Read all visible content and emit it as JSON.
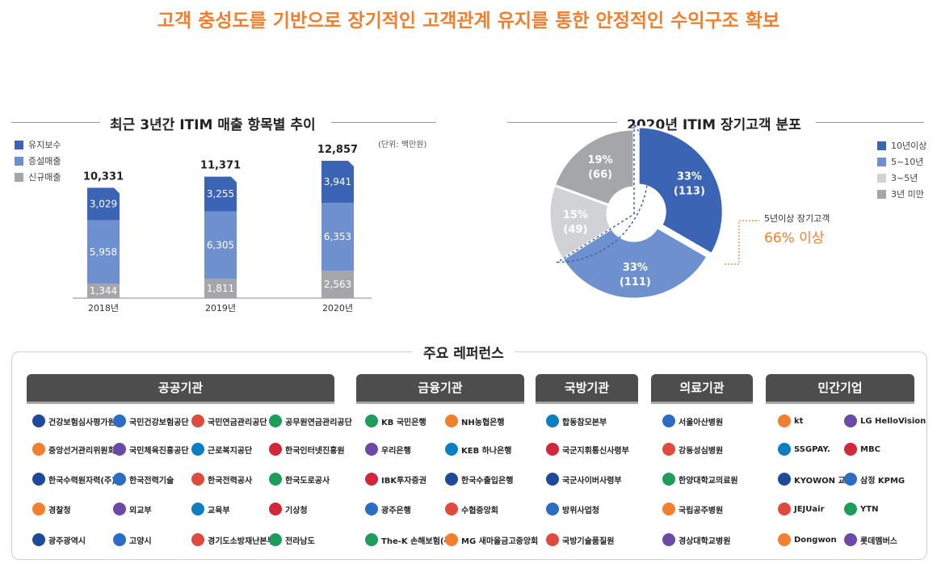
{
  "headline": "고객 충성도를 기반으로 장기적인 고객관계 유지를 통한 안정적인 수익구조 확보",
  "bar_section": {
    "title": "최근 3년간 ITIM 매출 항목별 추이",
    "unit": "(단위: 백만원)"
  },
  "pie_section": {
    "title": "2020년 ITIM 장기고객 분포",
    "note_line1": "5년이상 장기고객",
    "note_line2": "66% 이상"
  },
  "colors": {
    "dark_blue": "#3b64b4",
    "mid_blue": "#6e90cf",
    "light_gray": "#d0d2d6",
    "gray": "#a5a6aa",
    "orange": "#f07f2e"
  },
  "chart_data": [
    {
      "type": "bar",
      "stacked": true,
      "title": "최근 3년간 ITIM 매출 항목별 추이",
      "categories": [
        "2018년",
        "2019년",
        "2020년"
      ],
      "totals": [
        "10,331",
        "11,371",
        "12,857"
      ],
      "series": [
        {
          "name": "유지보수",
          "values": [
            3029,
            3255,
            3941
          ],
          "labels": [
            "3,029",
            "3,255",
            "3,941"
          ],
          "color": "#3b64b4"
        },
        {
          "name": "증설매출",
          "values": [
            5958,
            6305,
            6353
          ],
          "labels": [
            "5,958",
            "6,305",
            "6,353"
          ],
          "color": "#6e90cf"
        },
        {
          "name": "신규매출",
          "values": [
            1344,
            1811,
            2563
          ],
          "labels": [
            "1,344",
            "1,811",
            "2,563"
          ],
          "color": "#a5a6aa"
        }
      ],
      "legend_position": "top-left"
    },
    {
      "type": "pie",
      "donut": true,
      "title": "2020년 ITIM 장기고객 분포",
      "slices": [
        {
          "name": "10년이상",
          "value": 113,
          "pct": "33%",
          "count": "(113)",
          "color": "#3b64b4"
        },
        {
          "name": "5~10년",
          "value": 111,
          "pct": "33%",
          "count": "(111)",
          "color": "#6e90cf"
        },
        {
          "name": "3~5년",
          "value": 49,
          "pct": "15%",
          "count": "(49)",
          "color": "#d0d2d6"
        },
        {
          "name": "3년 미만",
          "value": 66,
          "pct": "19%",
          "count": "(66)",
          "color": "#a5a6aa"
        }
      ],
      "legend_position": "top-right"
    }
  ],
  "references": {
    "title": "주요 레퍼런스",
    "categories": [
      {
        "label": "공공기관",
        "orgs": [
          "건강보험심사평가원",
          "국민건강보험공단",
          "국민연금관리공단",
          "공무원연금관리공단",
          "중앙선거관리위원회",
          "국민체육진흥공단",
          "근로복지공단",
          "한국인터넷진흥원",
          "한국수력원자력(주)",
          "한국전력기술",
          "한국전력공사",
          "한국도로공사",
          "경찰청",
          "외교부",
          "교육부",
          "기상청",
          "광주광역시",
          "고양시",
          "경기도소방재난본부",
          "전라남도"
        ]
      },
      {
        "label": "금융기관",
        "orgs": [
          "KB 국민은행",
          "NH농협은행",
          "우리은행",
          "KEB 하나은행",
          "IBK투자증권",
          "한국수출입은행",
          "광주은행",
          "수협중앙회",
          "The-K 손해보험(주)",
          "MG 새마을금고중앙회"
        ]
      },
      {
        "label": "국방기관",
        "orgs": [
          "합동참모본부",
          "국군지휘통신사령부",
          "국군사이버사령부",
          "방위사업청",
          "국방기술품질원"
        ]
      },
      {
        "label": "의료기관",
        "orgs": [
          "서울아산병원",
          "강동성심병원",
          "한양대학교의료원",
          "국립공주병원",
          "경상대학교병원"
        ]
      },
      {
        "label": "민간기업",
        "orgs": [
          "kt",
          "LG HelloVision",
          "SSGPAY.",
          "MBC",
          "KYOWON 교원",
          "삼정 KPMG",
          "JEJUair",
          "YTN",
          "Dongwon",
          "롯데멤버스"
        ]
      }
    ]
  }
}
